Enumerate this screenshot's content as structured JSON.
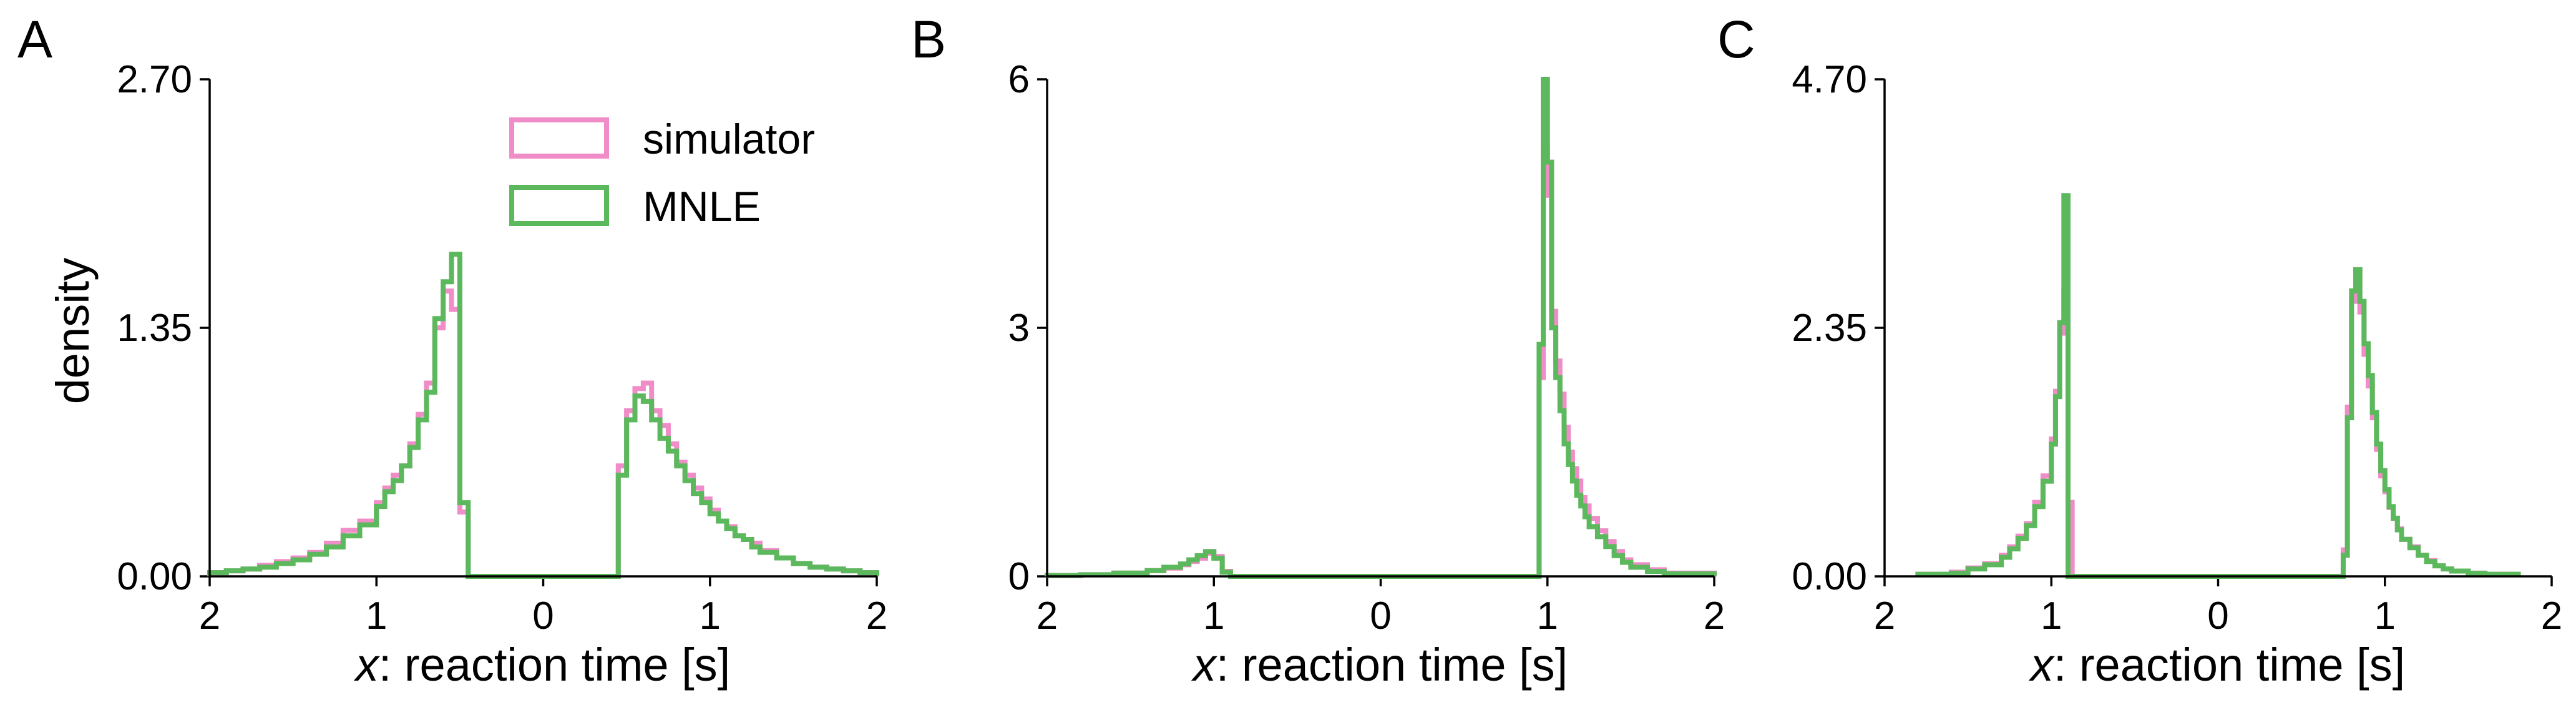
{
  "figure": {
    "colors": {
      "simulator": "#f08cc8",
      "mnle": "#5cb85c"
    }
  },
  "legend": {
    "entries": [
      "simulator",
      "MNLE"
    ]
  },
  "chart_data": [
    {
      "type": "histogram",
      "panel": "A",
      "ylabel": "density",
      "xlabel_var": "x",
      "xlabel_rest": ": reaction time [s]",
      "xlim": [
        -2,
        2
      ],
      "ylim": [
        0,
        2.7
      ],
      "xticks": [
        -2,
        -1,
        0,
        1,
        2
      ],
      "xtick_labels": [
        "2",
        "1",
        "0",
        "1",
        "2"
      ],
      "yticks": [
        0,
        1.35,
        2.7
      ],
      "ytick_labels": [
        "0.00",
        "1.35",
        "2.70"
      ],
      "legend_location": "top-center",
      "series": [
        {
          "name": "simulator",
          "x": [
            -2.0,
            -1.9,
            -1.8,
            -1.7,
            -1.6,
            -1.5,
            -1.4,
            -1.3,
            -1.2,
            -1.1,
            -1.0,
            -0.95,
            -0.9,
            -0.85,
            -0.8,
            -0.75,
            -0.7,
            -0.65,
            -0.6,
            -0.55,
            -0.5,
            -0.45,
            0.45,
            0.5,
            0.55,
            0.6,
            0.65,
            0.7,
            0.75,
            0.8,
            0.85,
            0.9,
            0.95,
            1.0,
            1.05,
            1.1,
            1.15,
            1.2,
            1.25,
            1.3,
            1.4,
            1.5,
            1.6,
            1.7,
            1.8,
            1.9,
            2.0
          ],
          "y": [
            0.02,
            0.03,
            0.04,
            0.06,
            0.08,
            0.1,
            0.13,
            0.18,
            0.25,
            0.3,
            0.4,
            0.48,
            0.55,
            0.6,
            0.72,
            0.88,
            1.05,
            1.35,
            1.55,
            1.45,
            0.35,
            0.0,
            0.6,
            0.9,
            1.02,
            1.05,
            0.9,
            0.82,
            0.72,
            0.62,
            0.55,
            0.48,
            0.42,
            0.36,
            0.3,
            0.27,
            0.22,
            0.2,
            0.18,
            0.14,
            0.1,
            0.07,
            0.05,
            0.04,
            0.03,
            0.02,
            0.0
          ]
        },
        {
          "name": "MNLE",
          "x": [
            -2.0,
            -1.9,
            -1.8,
            -1.7,
            -1.6,
            -1.5,
            -1.4,
            -1.3,
            -1.2,
            -1.1,
            -1.0,
            -0.95,
            -0.9,
            -0.85,
            -0.8,
            -0.75,
            -0.7,
            -0.65,
            -0.6,
            -0.55,
            -0.5,
            -0.45,
            0.45,
            0.5,
            0.55,
            0.6,
            0.65,
            0.7,
            0.75,
            0.8,
            0.85,
            0.9,
            0.95,
            1.0,
            1.05,
            1.1,
            1.15,
            1.2,
            1.25,
            1.3,
            1.4,
            1.5,
            1.6,
            1.7,
            1.8,
            1.9,
            2.0
          ],
          "y": [
            0.02,
            0.03,
            0.04,
            0.05,
            0.07,
            0.09,
            0.12,
            0.16,
            0.22,
            0.28,
            0.38,
            0.46,
            0.52,
            0.6,
            0.7,
            0.85,
            1.0,
            1.4,
            1.6,
            1.75,
            0.4,
            0.0,
            0.55,
            0.85,
            0.98,
            0.95,
            0.85,
            0.75,
            0.68,
            0.6,
            0.52,
            0.45,
            0.4,
            0.34,
            0.3,
            0.26,
            0.22,
            0.2,
            0.16,
            0.13,
            0.1,
            0.07,
            0.05,
            0.04,
            0.03,
            0.02,
            0.0
          ]
        }
      ]
    },
    {
      "type": "histogram",
      "panel": "B",
      "ylabel": "",
      "xlabel_var": "x",
      "xlabel_rest": ": reaction time [s]",
      "xlim": [
        -2,
        2
      ],
      "ylim": [
        0,
        6
      ],
      "xticks": [
        -2,
        -1,
        0,
        1,
        2
      ],
      "xtick_labels": [
        "2",
        "1",
        "0",
        "1",
        "2"
      ],
      "yticks": [
        0,
        3,
        6
      ],
      "ytick_labels": [
        "0",
        "3",
        "6"
      ],
      "series": [
        {
          "name": "simulator",
          "x": [
            -2.0,
            -1.8,
            -1.6,
            -1.4,
            -1.3,
            -1.2,
            -1.15,
            -1.1,
            -1.05,
            -1.0,
            -0.95,
            -0.9,
            0.9,
            0.95,
            0.975,
            1.0,
            1.025,
            1.05,
            1.075,
            1.1,
            1.125,
            1.15,
            1.175,
            1.2,
            1.225,
            1.25,
            1.3,
            1.35,
            1.4,
            1.45,
            1.5,
            1.6,
            1.7,
            2.0
          ],
          "y": [
            0.01,
            0.02,
            0.04,
            0.07,
            0.1,
            0.14,
            0.18,
            0.22,
            0.28,
            0.24,
            0.06,
            0.0,
            0.0,
            2.4,
            5.2,
            4.6,
            3.2,
            2.6,
            2.2,
            1.8,
            1.5,
            1.3,
            1.15,
            0.95,
            0.85,
            0.7,
            0.55,
            0.42,
            0.3,
            0.2,
            0.14,
            0.08,
            0.04,
            0.0
          ]
        },
        {
          "name": "MNLE",
          "x": [
            -2.0,
            -1.8,
            -1.6,
            -1.4,
            -1.3,
            -1.2,
            -1.15,
            -1.1,
            -1.05,
            -1.0,
            -0.95,
            -0.9,
            0.9,
            0.95,
            0.975,
            1.0,
            1.025,
            1.05,
            1.075,
            1.1,
            1.125,
            1.15,
            1.175,
            1.2,
            1.225,
            1.25,
            1.3,
            1.35,
            1.4,
            1.45,
            1.5,
            1.6,
            1.7,
            2.0
          ],
          "y": [
            0.01,
            0.02,
            0.04,
            0.07,
            0.11,
            0.15,
            0.2,
            0.25,
            0.3,
            0.22,
            0.05,
            0.0,
            0.0,
            2.8,
            6.0,
            5.0,
            3.0,
            2.4,
            2.0,
            1.6,
            1.35,
            1.15,
            0.98,
            0.85,
            0.72,
            0.6,
            0.48,
            0.36,
            0.25,
            0.17,
            0.11,
            0.06,
            0.03,
            0.0
          ]
        }
      ]
    },
    {
      "type": "histogram",
      "panel": "C",
      "ylabel": "",
      "xlabel_var": "x",
      "xlabel_rest": ": reaction time [s]",
      "xlim": [
        -2,
        2
      ],
      "ylim": [
        0,
        4.7
      ],
      "xticks": [
        -2,
        -1,
        0,
        1,
        2
      ],
      "xtick_labels": [
        "2",
        "1",
        "0",
        "1",
        "2"
      ],
      "yticks": [
        0,
        2.35,
        4.7
      ],
      "ytick_labels": [
        "0.00",
        "2.35",
        "4.70"
      ],
      "series": [
        {
          "name": "simulator",
          "x": [
            -1.8,
            -1.6,
            -1.5,
            -1.4,
            -1.3,
            -1.25,
            -1.2,
            -1.15,
            -1.1,
            -1.05,
            -1.0,
            -0.975,
            -0.95,
            -0.925,
            -0.9,
            -0.875,
            -0.85,
            -0.8,
            0.75,
            0.775,
            0.8,
            0.825,
            0.85,
            0.875,
            0.9,
            0.925,
            0.95,
            0.975,
            1.0,
            1.025,
            1.05,
            1.075,
            1.1,
            1.15,
            1.2,
            1.25,
            1.3,
            1.35,
            1.4,
            1.5,
            1.6,
            1.8
          ],
          "y": [
            0.02,
            0.04,
            0.08,
            0.12,
            0.2,
            0.28,
            0.38,
            0.5,
            0.7,
            0.95,
            1.3,
            1.75,
            2.3,
            2.7,
            0.7,
            0.0,
            0.0,
            0.0,
            0.25,
            1.6,
            2.6,
            2.9,
            2.5,
            2.1,
            1.8,
            1.5,
            1.2,
            0.95,
            0.8,
            0.65,
            0.55,
            0.45,
            0.35,
            0.28,
            0.2,
            0.15,
            0.1,
            0.07,
            0.05,
            0.03,
            0.02,
            0.0
          ]
        },
        {
          "name": "MNLE",
          "x": [
            -1.8,
            -1.6,
            -1.5,
            -1.4,
            -1.3,
            -1.25,
            -1.2,
            -1.15,
            -1.1,
            -1.05,
            -1.0,
            -0.975,
            -0.95,
            -0.925,
            -0.9,
            -0.875,
            -0.85,
            -0.8,
            0.75,
            0.775,
            0.8,
            0.825,
            0.85,
            0.875,
            0.9,
            0.925,
            0.95,
            0.975,
            1.0,
            1.025,
            1.05,
            1.075,
            1.1,
            1.15,
            1.2,
            1.25,
            1.3,
            1.35,
            1.4,
            1.5,
            1.6,
            1.8
          ],
          "y": [
            0.02,
            0.03,
            0.07,
            0.11,
            0.18,
            0.26,
            0.36,
            0.48,
            0.66,
            0.9,
            1.25,
            1.7,
            2.4,
            3.6,
            0.0,
            0.0,
            0.0,
            0.0,
            0.2,
            1.5,
            2.7,
            2.9,
            2.6,
            2.2,
            1.9,
            1.55,
            1.25,
            1.0,
            0.82,
            0.66,
            0.55,
            0.44,
            0.35,
            0.27,
            0.2,
            0.14,
            0.1,
            0.07,
            0.05,
            0.03,
            0.02,
            0.0
          ]
        }
      ]
    }
  ]
}
